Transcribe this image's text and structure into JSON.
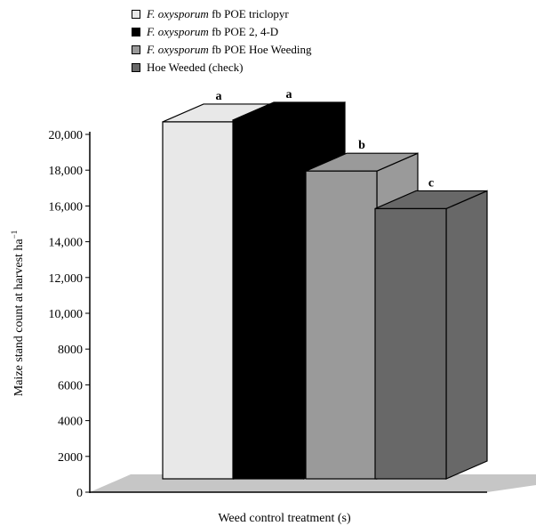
{
  "chart_data": {
    "type": "bar",
    "categories": [
      "F. oxysporum fb POE triclopyr",
      "F. oxysporum fb POE 2, 4-D",
      "F. oxysporum fb POE Hoe Weeding",
      "Hoe Weeded (check)"
    ],
    "values": [
      20700,
      20800,
      17950,
      15850
    ],
    "letters": [
      "a",
      "a",
      "b",
      "c"
    ],
    "xlabel": "Weed control treatment (s)",
    "ylabel": "Maize stand count at harvest ha",
    "ylabel_superscript": "−1",
    "ylim": [
      0,
      20000
    ],
    "yticks": [
      "0",
      "2000",
      "4000",
      "6000",
      "8000",
      "10,000",
      "12,000",
      "14,000",
      "16,000",
      "18,000",
      "20,000"
    ],
    "legend_position": "top-left",
    "grid": false,
    "colors": [
      "#e8e8e8",
      "#000000",
      "#9a9a9a",
      "#686868"
    ],
    "floor_color": "#c6c6c6"
  },
  "legend": [
    {
      "italic": "F. oxysporum",
      "text": " fb POE triclopyr"
    },
    {
      "italic": "F. oxysporum",
      "text": " fb POE 2, 4-D"
    },
    {
      "italic": "F. oxysporum",
      "text": " fb POE Hoe Weeding"
    },
    {
      "italic": "",
      "text": "Hoe Weeded (check)"
    }
  ]
}
